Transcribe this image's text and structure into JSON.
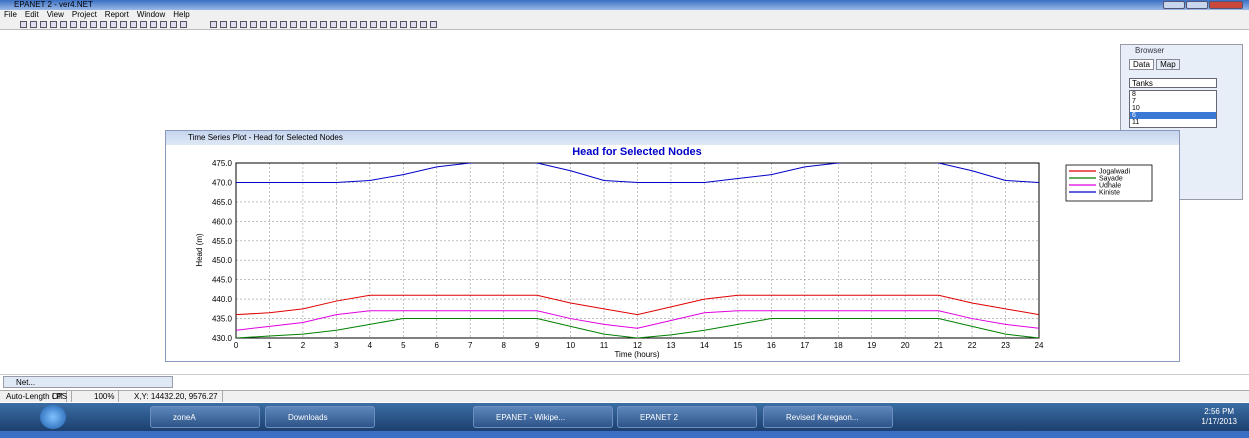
{
  "app": {
    "title": "EPANET 2 - ver4.NET",
    "menu": [
      "File",
      "Edit",
      "View",
      "Project",
      "Report",
      "Window",
      "Help"
    ],
    "browser": {
      "title": "Browser",
      "tabs": [
        "Data",
        "Map"
      ],
      "dropdown": "Tanks",
      "items": [
        "8",
        "7",
        "10",
        "6",
        "11"
      ]
    },
    "chart_window_title": "Time Series Plot - Head for Selected Nodes",
    "net_window": "Net...",
    "status": [
      "Auto-Length Off",
      "LPS",
      "100%",
      "X,Y: 14432.20, 9576.27"
    ],
    "taskbar": [
      "zoneA",
      "Downloads",
      "EPANET - Wikipe...",
      "EPANET 2",
      "Revised Karegaon..."
    ],
    "clock": {
      "time": "2:56 PM",
      "date": "1/17/2013"
    }
  },
  "chart_data": {
    "type": "line",
    "title": "Head for Selected Nodes",
    "x_label": "Time (hours)",
    "y_label": "Head (m)",
    "x": [
      0,
      1,
      2,
      3,
      4,
      5,
      6,
      7,
      8,
      9,
      10,
      11,
      12,
      13,
      14,
      15,
      16,
      17,
      18,
      19,
      20,
      21,
      22,
      23,
      24
    ],
    "xlim": [
      0,
      24
    ],
    "xticks": [
      0,
      1,
      2,
      3,
      4,
      5,
      6,
      7,
      8,
      9,
      10,
      11,
      12,
      13,
      14,
      15,
      16,
      17,
      18,
      19,
      20,
      21,
      22,
      23,
      24
    ],
    "ylim": [
      430,
      475
    ],
    "yticks": [
      {
        "value": 430,
        "label": "430.0"
      },
      {
        "value": 435,
        "label": "435.0"
      },
      {
        "value": 440,
        "label": "440.0"
      },
      {
        "value": 445,
        "label": "445.0"
      },
      {
        "value": 450,
        "label": "450.0"
      },
      {
        "value": 455,
        "label": "455.0"
      },
      {
        "value": 460,
        "label": "460.0"
      },
      {
        "value": 465,
        "label": "465.0"
      },
      {
        "value": 470,
        "label": "470.0"
      },
      {
        "value": 475,
        "label": "475.0"
      }
    ],
    "grid": true,
    "legend": "right",
    "series": [
      {
        "name": "Jogalwadi",
        "color": "#e00000",
        "values": [
          436,
          436.5,
          437.5,
          439.5,
          441,
          441,
          441,
          441,
          441,
          441,
          439,
          437.5,
          436,
          438,
          440,
          441,
          441,
          441,
          441,
          441,
          441,
          441,
          439,
          437.5,
          436
        ]
      },
      {
        "name": "Sayade",
        "color": "#008000",
        "values": [
          430,
          430.5,
          431,
          432,
          433.5,
          435,
          435,
          435,
          435,
          435,
          433,
          431,
          430,
          430.8,
          432,
          433.5,
          435,
          435,
          435,
          435,
          435,
          435,
          433,
          431,
          430
        ]
      },
      {
        "name": "Udhale",
        "color": "#e000e0",
        "values": [
          432,
          433,
          434,
          436,
          437,
          437,
          437,
          437,
          437,
          437,
          435,
          433.5,
          432.5,
          434.5,
          436.5,
          437,
          437,
          437,
          437,
          437,
          437,
          437,
          435,
          433.5,
          432.5
        ]
      },
      {
        "name": "Kiniste",
        "color": "#0000c8",
        "values": [
          470,
          470,
          470,
          470,
          470.5,
          472,
          474,
          475,
          475.8,
          475,
          473,
          470.5,
          470,
          470,
          470,
          471,
          472,
          474,
          475,
          475.8,
          475.8,
          475,
          473,
          470.5,
          470
        ]
      }
    ]
  }
}
